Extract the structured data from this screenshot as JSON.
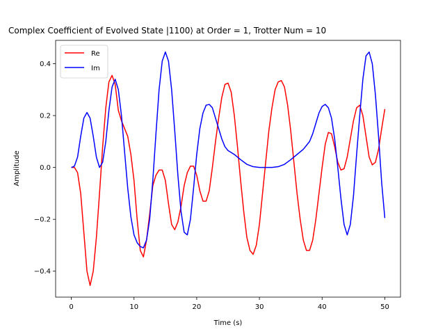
{
  "chart_data": {
    "type": "line",
    "title": "Complex Coefficient of Evolved State |1100⟩ at Order = 1, Trotter Num = 10",
    "xlabel": "Time (s)",
    "ylabel": "Amplitude",
    "xlim": [
      -2.5,
      52.5
    ],
    "ylim": [
      -0.5,
      0.49
    ],
    "xticks": [
      0,
      10,
      20,
      30,
      40,
      50
    ],
    "yticks": [
      -0.4,
      -0.2,
      0.0,
      0.2,
      0.4
    ],
    "xtick_labels": [
      "0",
      "10",
      "20",
      "30",
      "40",
      "50"
    ],
    "ytick_labels": [
      "−0.4",
      "−0.2",
      "0.0",
      "0.2",
      "0.4"
    ],
    "grid": false,
    "legend": "top-left",
    "series": [
      {
        "name": "Re",
        "color": "#ff0000",
        "points": [
          [
            0,
            0
          ],
          [
            0.5,
            0
          ],
          [
            1,
            -0.02
          ],
          [
            1.5,
            -0.1
          ],
          [
            2,
            -0.25
          ],
          [
            2.5,
            -0.4
          ],
          [
            3,
            -0.455
          ],
          [
            3.5,
            -0.4
          ],
          [
            4,
            -0.27
          ],
          [
            4.5,
            -0.1
          ],
          [
            5,
            0.08
          ],
          [
            5.5,
            0.23
          ],
          [
            6,
            0.33
          ],
          [
            6.5,
            0.355
          ],
          [
            7,
            0.32
          ],
          [
            7.5,
            0.22
          ],
          [
            8,
            0.18
          ],
          [
            9,
            0.12
          ],
          [
            9.5,
            0.05
          ],
          [
            10,
            -0.05
          ],
          [
            10.5,
            -0.2
          ],
          [
            11,
            -0.32
          ],
          [
            11.5,
            -0.345
          ],
          [
            12,
            -0.28
          ],
          [
            12.5,
            -0.18
          ],
          [
            13,
            -0.07
          ],
          [
            13.5,
            -0.03
          ],
          [
            14,
            -0.01
          ],
          [
            14.5,
            -0.01
          ],
          [
            15,
            -0.05
          ],
          [
            15.5,
            -0.14
          ],
          [
            16,
            -0.22
          ],
          [
            16.5,
            -0.24
          ],
          [
            17,
            -0.21
          ],
          [
            17.5,
            -0.15
          ],
          [
            18,
            -0.07
          ],
          [
            18.5,
            -0.02
          ],
          [
            19,
            0.005
          ],
          [
            19.5,
            0.005
          ],
          [
            20,
            -0.03
          ],
          [
            20.5,
            -0.09
          ],
          [
            21,
            -0.13
          ],
          [
            21.5,
            -0.13
          ],
          [
            22,
            -0.09
          ],
          [
            22.5,
            0.0
          ],
          [
            23,
            0.1
          ],
          [
            23.5,
            0.19
          ],
          [
            24,
            0.27
          ],
          [
            24.5,
            0.32
          ],
          [
            25,
            0.325
          ],
          [
            25.5,
            0.29
          ],
          [
            26,
            0.2
          ],
          [
            26.5,
            0.08
          ],
          [
            27,
            -0.05
          ],
          [
            27.5,
            -0.17
          ],
          [
            28,
            -0.27
          ],
          [
            28.5,
            -0.32
          ],
          [
            29,
            -0.335
          ],
          [
            29.5,
            -0.3
          ],
          [
            30,
            -0.22
          ],
          [
            30.5,
            -0.1
          ],
          [
            31,
            0.02
          ],
          [
            31.5,
            0.14
          ],
          [
            32,
            0.23
          ],
          [
            32.5,
            0.3
          ],
          [
            33,
            0.33
          ],
          [
            33.5,
            0.335
          ],
          [
            34,
            0.31
          ],
          [
            34.5,
            0.24
          ],
          [
            35,
            0.14
          ],
          [
            35.5,
            0.02
          ],
          [
            36,
            -0.1
          ],
          [
            36.5,
            -0.2
          ],
          [
            37,
            -0.28
          ],
          [
            37.5,
            -0.32
          ],
          [
            38,
            -0.32
          ],
          [
            38.5,
            -0.28
          ],
          [
            39,
            -0.2
          ],
          [
            39.5,
            -0.1
          ],
          [
            40,
            0.0
          ],
          [
            40.5,
            0.09
          ],
          [
            41,
            0.135
          ],
          [
            41.5,
            0.13
          ],
          [
            42,
            0.08
          ],
          [
            42.5,
            0.02
          ],
          [
            43,
            -0.01
          ],
          [
            43.5,
            -0.005
          ],
          [
            44,
            0.04
          ],
          [
            44.5,
            0.11
          ],
          [
            45,
            0.18
          ],
          [
            45.5,
            0.23
          ],
          [
            46,
            0.24
          ],
          [
            46.5,
            0.2
          ],
          [
            47,
            0.12
          ],
          [
            47.5,
            0.04
          ],
          [
            48,
            0.01
          ],
          [
            48.5,
            0.02
          ],
          [
            49,
            0.07
          ],
          [
            49.5,
            0.15
          ],
          [
            50,
            0.225
          ]
        ]
      },
      {
        "name": "Im",
        "color": "#0000ff",
        "points": [
          [
            0,
            0
          ],
          [
            0.5,
            0.005
          ],
          [
            1,
            0.04
          ],
          [
            1.5,
            0.12
          ],
          [
            2,
            0.19
          ],
          [
            2.5,
            0.212
          ],
          [
            3,
            0.19
          ],
          [
            3.5,
            0.12
          ],
          [
            4,
            0.04
          ],
          [
            4.5,
            0.0
          ],
          [
            5,
            0.02
          ],
          [
            5.5,
            0.1
          ],
          [
            6,
            0.22
          ],
          [
            6.5,
            0.31
          ],
          [
            7,
            0.34
          ],
          [
            7.5,
            0.3
          ],
          [
            8,
            0.2
          ],
          [
            8.5,
            0.06
          ],
          [
            9,
            -0.08
          ],
          [
            9.5,
            -0.19
          ],
          [
            10,
            -0.26
          ],
          [
            10.5,
            -0.29
          ],
          [
            11,
            -0.305
          ],
          [
            11.5,
            -0.31
          ],
          [
            12,
            -0.28
          ],
          [
            12.5,
            -0.2
          ],
          [
            13,
            -0.05
          ],
          [
            13.5,
            0.13
          ],
          [
            14,
            0.3
          ],
          [
            14.5,
            0.41
          ],
          [
            15,
            0.445
          ],
          [
            15.5,
            0.41
          ],
          [
            16,
            0.3
          ],
          [
            16.5,
            0.14
          ],
          [
            17,
            -0.03
          ],
          [
            17.5,
            -0.17
          ],
          [
            18,
            -0.25
          ],
          [
            18.5,
            -0.26
          ],
          [
            19,
            -0.2
          ],
          [
            19.5,
            -0.08
          ],
          [
            20,
            0.05
          ],
          [
            20.5,
            0.15
          ],
          [
            21,
            0.21
          ],
          [
            21.5,
            0.24
          ],
          [
            22,
            0.243
          ],
          [
            22.5,
            0.23
          ],
          [
            23,
            0.19
          ],
          [
            23.5,
            0.15
          ],
          [
            24,
            0.11
          ],
          [
            24.5,
            0.08
          ],
          [
            25,
            0.065
          ],
          [
            26,
            0.05
          ],
          [
            27,
            0.03
          ],
          [
            28,
            0.012
          ],
          [
            29,
            0.003
          ],
          [
            30,
            0.0
          ],
          [
            31,
            0.0
          ],
          [
            32,
            0.0
          ],
          [
            33,
            0.003
          ],
          [
            34,
            0.012
          ],
          [
            35,
            0.03
          ],
          [
            36,
            0.05
          ],
          [
            37,
            0.07
          ],
          [
            38,
            0.1
          ],
          [
            38.5,
            0.13
          ],
          [
            39,
            0.17
          ],
          [
            39.5,
            0.21
          ],
          [
            40,
            0.235
          ],
          [
            40.5,
            0.243
          ],
          [
            41,
            0.23
          ],
          [
            41.5,
            0.19
          ],
          [
            42,
            0.11
          ],
          [
            42.5,
            0.0
          ],
          [
            43,
            -0.12
          ],
          [
            43.5,
            -0.22
          ],
          [
            44,
            -0.26
          ],
          [
            44.5,
            -0.22
          ],
          [
            45,
            -0.11
          ],
          [
            45.5,
            0.05
          ],
          [
            46,
            0.2
          ],
          [
            46.5,
            0.34
          ],
          [
            47,
            0.43
          ],
          [
            47.5,
            0.445
          ],
          [
            48,
            0.4
          ],
          [
            48.5,
            0.28
          ],
          [
            49,
            0.12
          ],
          [
            49.5,
            -0.06
          ],
          [
            50,
            -0.195
          ]
        ]
      }
    ]
  }
}
